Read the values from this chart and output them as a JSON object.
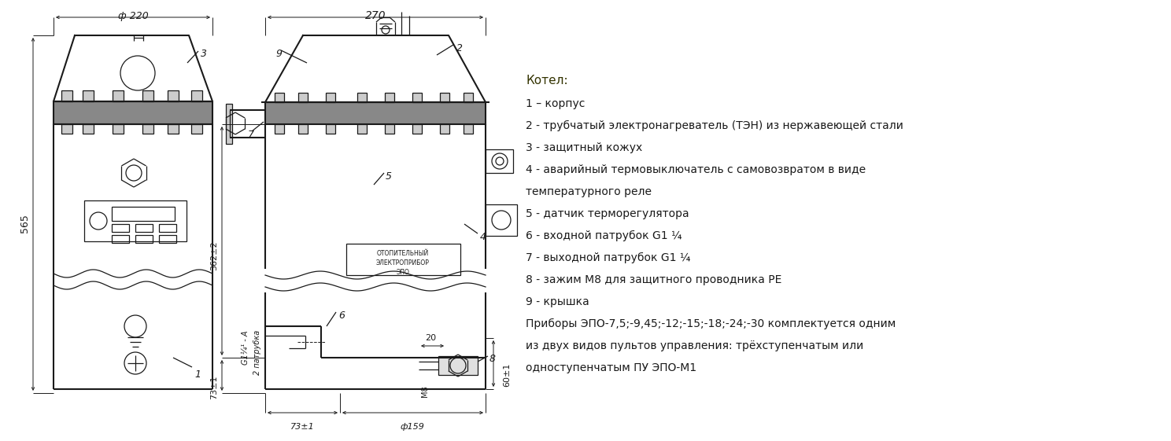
{
  "bg_color": "#ffffff",
  "line_color": "#1a1a1a",
  "text_color": "#1a1a1a",
  "title_text": "Котел:",
  "legend_lines": [
    "1 – корпус",
    "2 - трубчатый электронагреватель (ТЭН) из нержавеющей стали",
    "3 - защитный кожух",
    "4 - аварийный термовыключатель с самовозвратом в виде",
    "температурного реле",
    "5 - датчик терморегулятора",
    "6 - входной патрубок G1 ¼",
    "7 - выходной патрубок G1 ¼",
    "8 - зажим М8 для защитного проводника РЕ",
    "9 - крышка",
    "Приборы ЭПО-7,5;-9,45;-12;-15;-18;-24;-30 комплектуется одним",
    "из двух видов пультов управления: трёхступенчатым или",
    "одноступенчатым ПУ ЭПО-М1"
  ],
  "figsize": [
    14.88,
    5.61
  ],
  "dpi": 100
}
